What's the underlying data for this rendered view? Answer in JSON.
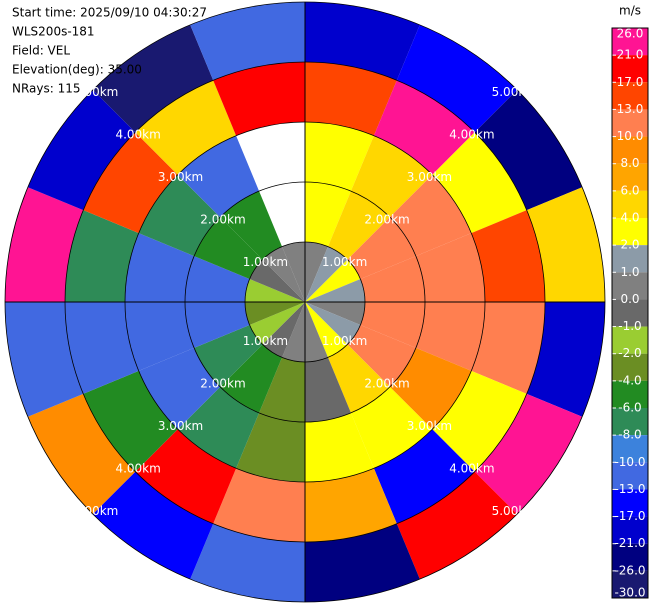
{
  "chart_data": {
    "type": "ppi",
    "header": [
      "Start time: 2025/09/10 04:30:27",
      "WLS200s-181",
      "Field: VEL",
      "Elevation(deg): 35.00",
      "NRays: 115"
    ],
    "range_labels": [
      "1.00km",
      "2.00km",
      "3.00km",
      "4.00km",
      "5.00km"
    ],
    "range_bins_km": [
      0,
      1,
      2,
      3,
      4,
      5
    ],
    "azimuth_bins_deg": [
      0,
      22.5,
      45,
      67.5,
      90,
      112.5,
      135,
      157.5,
      180,
      202.5,
      225,
      247.5,
      270,
      292.5,
      315,
      337.5,
      360
    ],
    "values": [
      [
        0,
        3,
        3,
        15,
        -20
      ],
      [
        1,
        5,
        4,
        22,
        -15
      ],
      [
        2,
        11,
        11,
        3,
        -25
      ],
      [
        1,
        11,
        12,
        14,
        5
      ],
      [
        0,
        11,
        11,
        11,
        -18
      ],
      [
        1,
        11,
        9,
        3,
        24
      ],
      [
        3,
        5,
        3,
        -14,
        18
      ],
      [
        0,
        -1,
        3,
        7,
        -22
      ],
      [
        0,
        -3,
        -3,
        12,
        -11
      ],
      [
        -1,
        -5,
        -7,
        20,
        -15
      ],
      [
        -2,
        -7,
        -11,
        -5,
        8
      ],
      [
        -3,
        -11,
        -11,
        -12,
        -11
      ],
      [
        -2,
        -11,
        -11,
        -7,
        22
      ],
      [
        -1,
        -5,
        -7,
        16,
        -19
      ],
      [
        0,
        -5,
        -11,
        5,
        -28
      ],
      [
        0,
        null,
        null,
        18,
        -12
      ]
    ],
    "colorbar": {
      "label": "m/s",
      "ticks": [
        {
          "value": 26,
          "label": "26.0"
        },
        {
          "value": 21,
          "label": "21.0"
        },
        {
          "value": 17,
          "label": "17.0"
        },
        {
          "value": 13,
          "label": "13.0"
        },
        {
          "value": 10,
          "label": "10.0"
        },
        {
          "value": 8,
          "label": "8.0"
        },
        {
          "value": 6,
          "label": "6.0"
        },
        {
          "value": 4,
          "label": "4.0"
        },
        {
          "value": 2,
          "label": "2.0"
        },
        {
          "value": 1,
          "label": "1.0"
        },
        {
          "value": 0,
          "label": "0.0"
        },
        {
          "value": -1,
          "label": "-1.0"
        },
        {
          "value": -2,
          "label": "-2.0"
        },
        {
          "value": -4,
          "label": "-4.0"
        },
        {
          "value": -6,
          "label": "-6.0"
        },
        {
          "value": -8,
          "label": "-8.0"
        },
        {
          "value": -10,
          "label": "-10.0"
        },
        {
          "value": -13,
          "label": "-13.0"
        },
        {
          "value": -17,
          "label": "-17.0"
        },
        {
          "value": -21,
          "label": "-21.0"
        },
        {
          "value": -26,
          "label": "-26.0"
        },
        {
          "value": -30,
          "label": "-30.0"
        }
      ],
      "colors": [
        "#ff1493",
        "#ff0000",
        "#ff4500",
        "#ff7f50",
        "#ff8c00",
        "#ffa500",
        "#ffd700",
        "#ffff00",
        "#8c9ba8",
        "#808080",
        "#696969",
        "#9acd32",
        "#6b8e23",
        "#228b22",
        "#2e8b57",
        "#3c82dc",
        "#4169e1",
        "#0000ff",
        "#0000cd",
        "#000080",
        "#191970"
      ]
    }
  }
}
